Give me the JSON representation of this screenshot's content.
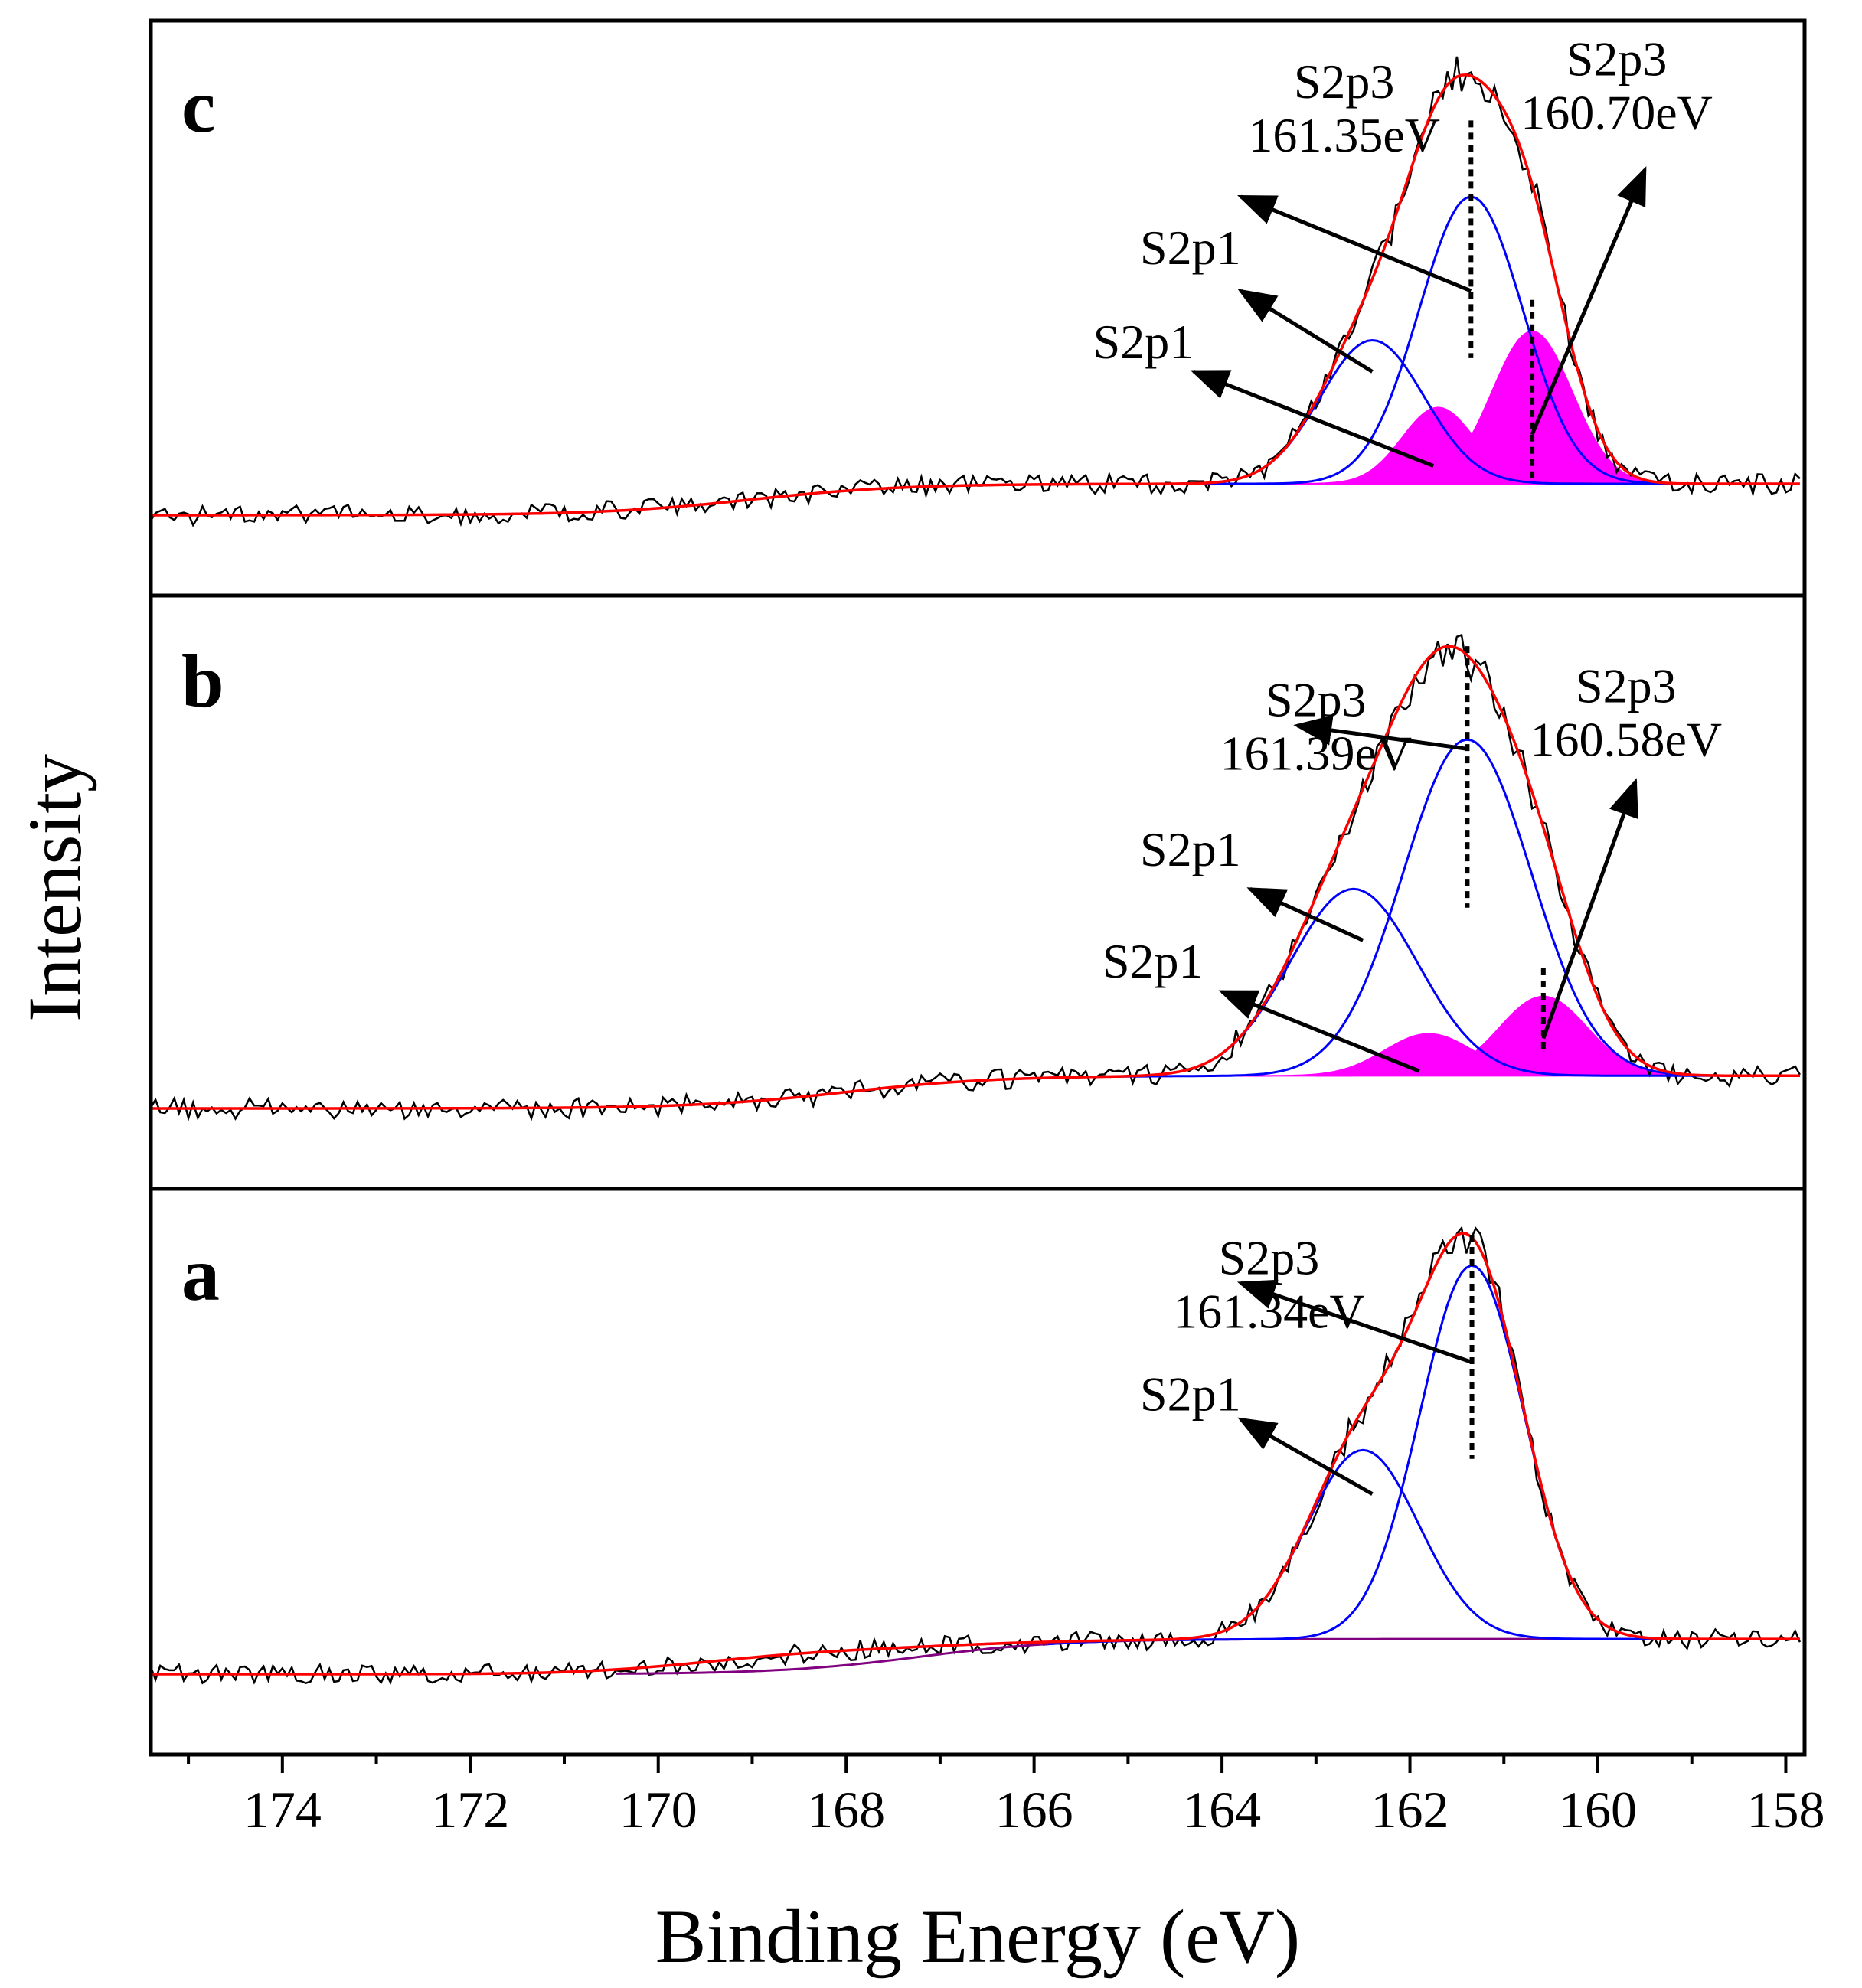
{
  "chart_data": {
    "type": "line",
    "title": "",
    "xlabel": "Binding Energy (eV)",
    "ylabel": "Intensity",
    "xlim": [
      175.4,
      157.8
    ],
    "x_reversed": true,
    "x_ticks": [
      174,
      172,
      170,
      168,
      166,
      164,
      162,
      160,
      158
    ],
    "x_tick_labels": [
      "174",
      "172",
      "170",
      "168",
      "166",
      "164",
      "162",
      "160",
      "158"
    ],
    "ylim_each_panel": [
      0,
      1
    ],
    "grid": false,
    "legend": "none",
    "colors": {
      "raw": "#000000",
      "envelope": "#ff0000",
      "component": "#0000ff",
      "shaded_component": "#ff00ff",
      "background_a": "#800080"
    },
    "panels": [
      {
        "label": "c",
        "noise_seed": 3,
        "background": {
          "start": 0.07,
          "end": 0.0,
          "center": 169,
          "width": 3.2
        },
        "secondary_bump": null,
        "components": [
          {
            "center": 161.35,
            "height": 0.64,
            "fwhm": 1.3,
            "color": "blue"
          },
          {
            "center": 162.4,
            "height": 0.32,
            "fwhm": 1.3,
            "color": "blue"
          },
          {
            "center": 160.7,
            "height": 0.34,
            "fwhm": 1.0,
            "color": "magenta"
          },
          {
            "center": 161.7,
            "height": 0.17,
            "fwhm": 0.9,
            "color": "magenta"
          }
        ],
        "dashed_lines": [
          {
            "x": 161.35,
            "y_top": 0.88,
            "y_bottom": 0.35
          },
          {
            "x": 160.7,
            "y_top": 0.48,
            "y_bottom": 0.08
          }
        ],
        "annotations": [
          {
            "lines": [
              "S2p3",
              "161.35eV"
            ],
            "text_x": 162.7,
            "text_y": 0.93,
            "align": "middle",
            "arrow_from": [
              161.35,
              0.5
            ],
            "arrow_to": [
              163.8,
              0.71
            ]
          },
          {
            "lines": [
              "S2p3",
              "160.70eV"
            ],
            "text_x": 159.8,
            "text_y": 0.98,
            "align": "middle",
            "arrow_from": [
              160.7,
              0.18
            ],
            "arrow_to": [
              159.5,
              0.77
            ]
          },
          {
            "lines": [
              "S2p1"
            ],
            "text_x": 163.8,
            "text_y": 0.56,
            "align": "end",
            "arrow_from": [
              162.4,
              0.32
            ],
            "arrow_to": [
              163.8,
              0.5
            ]
          },
          {
            "lines": [
              "S2p1"
            ],
            "text_x": 164.3,
            "text_y": 0.35,
            "align": "end",
            "arrow_from": [
              161.75,
              0.11
            ],
            "arrow_to": [
              164.3,
              0.32
            ]
          }
        ]
      },
      {
        "label": "b",
        "noise_seed": 7,
        "background": {
          "start": 0.07,
          "end": 0.0,
          "center": 168,
          "width": 3.2
        },
        "secondary_bump": null,
        "components": [
          {
            "center": 161.39,
            "height": 0.72,
            "fwhm": 1.6,
            "color": "blue"
          },
          {
            "center": 162.6,
            "height": 0.4,
            "fwhm": 1.6,
            "color": "blue"
          },
          {
            "center": 160.58,
            "height": 0.17,
            "fwhm": 1.1,
            "color": "magenta"
          },
          {
            "center": 161.8,
            "height": 0.09,
            "fwhm": 1.1,
            "color": "magenta"
          }
        ],
        "dashed_lines": [
          {
            "x": 161.39,
            "y_top": 0.99,
            "y_bottom": 0.43
          },
          {
            "x": 160.58,
            "y_top": 0.3,
            "y_bottom": 0.12
          }
        ],
        "annotations": [
          {
            "lines": [
              "S2p3",
              "161.39eV"
            ],
            "text_x": 163.0,
            "text_y": 0.84,
            "align": "middle",
            "arrow_from": [
              161.39,
              0.77
            ],
            "arrow_to": [
              163.2,
              0.82
            ]
          },
          {
            "lines": [
              "S2p3",
              "160.58eV"
            ],
            "text_x": 159.7,
            "text_y": 0.87,
            "align": "middle",
            "arrow_from": [
              160.58,
              0.15
            ],
            "arrow_to": [
              159.6,
              0.7
            ]
          },
          {
            "lines": [
              "S2p1"
            ],
            "text_x": 163.8,
            "text_y": 0.52,
            "align": "end",
            "arrow_from": [
              162.5,
              0.36
            ],
            "arrow_to": [
              163.7,
              0.47
            ]
          },
          {
            "lines": [
              "S2p1"
            ],
            "text_x": 164.2,
            "text_y": 0.28,
            "align": "end",
            "arrow_from": [
              161.9,
              0.08
            ],
            "arrow_to": [
              164.0,
              0.25
            ]
          }
        ]
      },
      {
        "label": "a",
        "noise_seed": 11,
        "background": {
          "start": 0.08,
          "end": 0.0,
          "center": 167.2,
          "width": 3.0
        },
        "secondary_bump": {
          "center": 168.4,
          "height": 0.035,
          "fwhm": 3.0
        },
        "components": [
          {
            "center": 161.34,
            "height": 0.85,
            "fwhm": 1.3,
            "color": "blue"
          },
          {
            "center": 162.5,
            "height": 0.43,
            "fwhm": 1.4,
            "color": "blue"
          }
        ],
        "dashed_lines": [
          {
            "x": 161.34,
            "y_top": 1.0,
            "y_bottom": 0.49
          }
        ],
        "annotations": [
          {
            "lines": [
              "S2p3",
              "161.34eV"
            ],
            "text_x": 163.5,
            "text_y": 0.91,
            "align": "middle",
            "arrow_from": [
              161.34,
              0.71
            ],
            "arrow_to": [
              163.8,
              0.89
            ]
          },
          {
            "lines": [
              "S2p1"
            ],
            "text_x": 163.8,
            "text_y": 0.6,
            "align": "end",
            "arrow_from": [
              162.4,
              0.41
            ],
            "arrow_to": [
              163.8,
              0.58
            ]
          }
        ]
      }
    ]
  }
}
